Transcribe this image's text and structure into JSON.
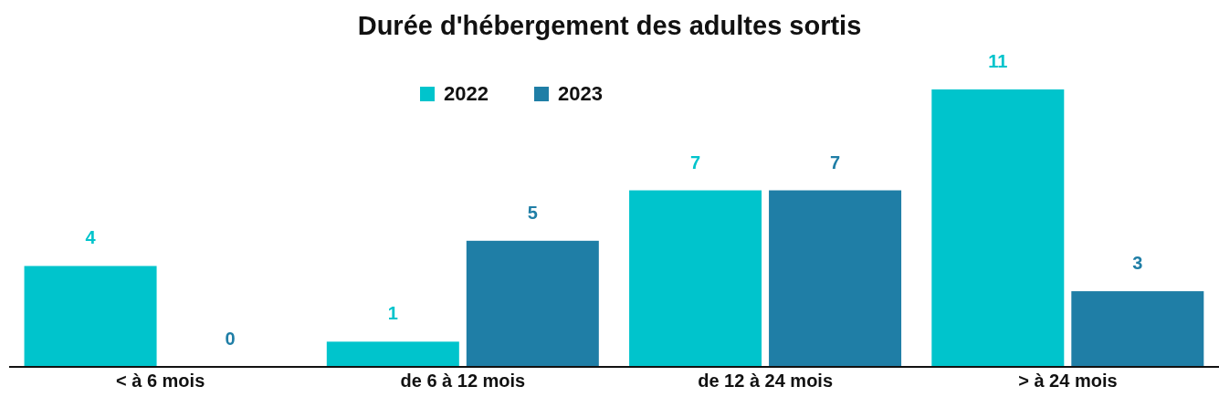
{
  "chart_data": {
    "type": "bar",
    "title": "Durée d'hébergement des adultes sortis",
    "categories": [
      "< à 6 mois",
      "de 6 à 12 mois",
      "de 12 à 24 mois",
      "> à 24 mois"
    ],
    "series": [
      {
        "name": "2022",
        "color": "#00c4cc",
        "values": [
          4,
          1,
          7,
          11
        ]
      },
      {
        "name": "2023",
        "color": "#1f7ea6",
        "values": [
          0,
          5,
          7,
          3
        ]
      }
    ],
    "data_labels": true,
    "legend": "top",
    "grid": false,
    "tick_labels": "x"
  }
}
